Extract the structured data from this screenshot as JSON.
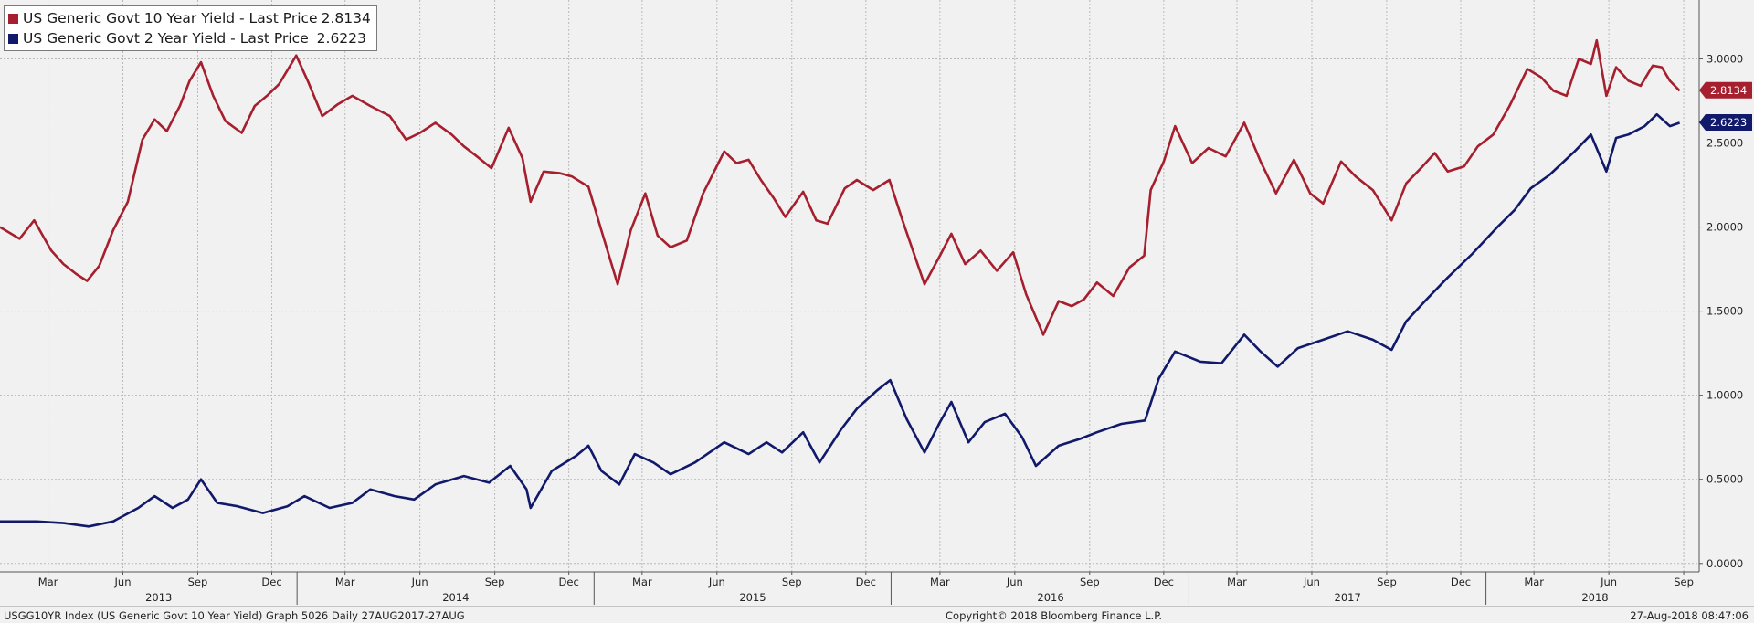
{
  "legend": {
    "items": [
      {
        "label": "US Generic Govt 10 Year Yield - Last Price",
        "value": "2.8134",
        "color": "#a51f2e"
      },
      {
        "label": "US Generic Govt 2 Year Yield - Last Price ",
        "value": "2.6223",
        "color": "#10196a"
      }
    ]
  },
  "footer": {
    "left": "USGG10YR Index (US Generic Govt 10 Year Yield) Graph 5026  Daily 27AUG2017-27AUG",
    "center": "Copyright© 2018 Bloomberg Finance L.P.",
    "right": "27-Aug-2018 08:47:06"
  },
  "chart_data": {
    "type": "line",
    "grid": true,
    "legend_position": "top-left",
    "ylim": [
      -0.05,
      3.35
    ],
    "yticks": [
      {
        "value": 0.0,
        "label": "0.0000"
      },
      {
        "value": 0.5,
        "label": "0.5000"
      },
      {
        "value": 1.0,
        "label": "1.0000"
      },
      {
        "value": 1.5,
        "label": "1.5000"
      },
      {
        "value": 2.0,
        "label": "2.0000"
      },
      {
        "value": 2.5,
        "label": "2.5000"
      },
      {
        "value": 3.0,
        "label": "3.0000"
      }
    ],
    "xlim": [
      "2013-01-01",
      "2018-09-20"
    ],
    "month_ticks": [
      {
        "date": "2013-03-01",
        "label": "Mar"
      },
      {
        "date": "2013-06-01",
        "label": "Jun"
      },
      {
        "date": "2013-09-01",
        "label": "Sep"
      },
      {
        "date": "2013-12-01",
        "label": "Dec"
      },
      {
        "date": "2014-03-01",
        "label": "Mar"
      },
      {
        "date": "2014-06-01",
        "label": "Jun"
      },
      {
        "date": "2014-09-01",
        "label": "Sep"
      },
      {
        "date": "2014-12-01",
        "label": "Dec"
      },
      {
        "date": "2015-03-01",
        "label": "Mar"
      },
      {
        "date": "2015-06-01",
        "label": "Jun"
      },
      {
        "date": "2015-09-01",
        "label": "Sep"
      },
      {
        "date": "2015-12-01",
        "label": "Dec"
      },
      {
        "date": "2016-03-01",
        "label": "Mar"
      },
      {
        "date": "2016-06-01",
        "label": "Jun"
      },
      {
        "date": "2016-09-01",
        "label": "Sep"
      },
      {
        "date": "2016-12-01",
        "label": "Dec"
      },
      {
        "date": "2017-03-01",
        "label": "Mar"
      },
      {
        "date": "2017-06-01",
        "label": "Jun"
      },
      {
        "date": "2017-09-01",
        "label": "Sep"
      },
      {
        "date": "2017-12-01",
        "label": "Dec"
      },
      {
        "date": "2018-03-01",
        "label": "Mar"
      },
      {
        "date": "2018-06-01",
        "label": "Jun"
      },
      {
        "date": "2018-09-01",
        "label": "Sep"
      }
    ],
    "year_labels": [
      {
        "date": "2013-07-15",
        "label": "2013"
      },
      {
        "date": "2014-07-15",
        "label": "2014"
      },
      {
        "date": "2015-07-15",
        "label": "2015"
      },
      {
        "date": "2016-07-15",
        "label": "2016"
      },
      {
        "date": "2017-07-15",
        "label": "2017"
      },
      {
        "date": "2018-05-15",
        "label": "2018"
      }
    ],
    "year_dividers": [
      "2014-01-01",
      "2015-01-01",
      "2016-01-01",
      "2017-01-01",
      "2018-01-01"
    ],
    "series": [
      {
        "name": "US Generic Govt 10 Year Yield - Last Price",
        "color": "#a51f2e",
        "last_value": 2.8134,
        "last_label": "2.8134",
        "points": [
          [
            "2013-01-01",
            2.0
          ],
          [
            "2013-01-25",
            1.93
          ],
          [
            "2013-02-12",
            2.04
          ],
          [
            "2013-03-05",
            1.86
          ],
          [
            "2013-03-20",
            1.78
          ],
          [
            "2013-04-05",
            1.72
          ],
          [
            "2013-04-18",
            1.68
          ],
          [
            "2013-05-03",
            1.77
          ],
          [
            "2013-05-20",
            1.98
          ],
          [
            "2013-06-07",
            2.15
          ],
          [
            "2013-06-25",
            2.52
          ],
          [
            "2013-07-10",
            2.64
          ],
          [
            "2013-07-25",
            2.57
          ],
          [
            "2013-08-10",
            2.72
          ],
          [
            "2013-08-22",
            2.87
          ],
          [
            "2013-09-05",
            2.98
          ],
          [
            "2013-09-20",
            2.78
          ],
          [
            "2013-10-05",
            2.63
          ],
          [
            "2013-10-25",
            2.56
          ],
          [
            "2013-11-10",
            2.72
          ],
          [
            "2013-11-25",
            2.78
          ],
          [
            "2013-12-10",
            2.85
          ],
          [
            "2013-12-31",
            3.02
          ],
          [
            "2014-01-15",
            2.86
          ],
          [
            "2014-02-01",
            2.66
          ],
          [
            "2014-02-20",
            2.73
          ],
          [
            "2014-03-10",
            2.78
          ],
          [
            "2014-04-01",
            2.72
          ],
          [
            "2014-04-25",
            2.66
          ],
          [
            "2014-05-15",
            2.52
          ],
          [
            "2014-06-01",
            2.56
          ],
          [
            "2014-06-20",
            2.62
          ],
          [
            "2014-07-10",
            2.55
          ],
          [
            "2014-07-25",
            2.48
          ],
          [
            "2014-08-10",
            2.42
          ],
          [
            "2014-08-28",
            2.35
          ],
          [
            "2014-09-18",
            2.59
          ],
          [
            "2014-10-05",
            2.41
          ],
          [
            "2014-10-15",
            2.15
          ],
          [
            "2014-10-31",
            2.33
          ],
          [
            "2014-11-20",
            2.32
          ],
          [
            "2014-12-05",
            2.3
          ],
          [
            "2014-12-25",
            2.24
          ],
          [
            "2015-01-10",
            1.98
          ],
          [
            "2015-01-30",
            1.66
          ],
          [
            "2015-02-15",
            1.98
          ],
          [
            "2015-03-05",
            2.2
          ],
          [
            "2015-03-20",
            1.95
          ],
          [
            "2015-04-05",
            1.88
          ],
          [
            "2015-04-25",
            1.92
          ],
          [
            "2015-05-15",
            2.2
          ],
          [
            "2015-06-10",
            2.45
          ],
          [
            "2015-06-25",
            2.38
          ],
          [
            "2015-07-10",
            2.4
          ],
          [
            "2015-07-25",
            2.28
          ],
          [
            "2015-08-10",
            2.17
          ],
          [
            "2015-08-24",
            2.06
          ],
          [
            "2015-09-15",
            2.21
          ],
          [
            "2015-10-01",
            2.04
          ],
          [
            "2015-10-15",
            2.02
          ],
          [
            "2015-11-05",
            2.23
          ],
          [
            "2015-11-20",
            2.28
          ],
          [
            "2015-12-10",
            2.22
          ],
          [
            "2015-12-30",
            2.28
          ],
          [
            "2016-01-15",
            2.04
          ],
          [
            "2016-02-11",
            1.66
          ],
          [
            "2016-03-01",
            1.83
          ],
          [
            "2016-03-15",
            1.96
          ],
          [
            "2016-04-01",
            1.78
          ],
          [
            "2016-04-20",
            1.86
          ],
          [
            "2016-05-10",
            1.74
          ],
          [
            "2016-05-30",
            1.85
          ],
          [
            "2016-06-15",
            1.6
          ],
          [
            "2016-07-06",
            1.36
          ],
          [
            "2016-07-25",
            1.56
          ],
          [
            "2016-08-10",
            1.53
          ],
          [
            "2016-08-25",
            1.57
          ],
          [
            "2016-09-10",
            1.67
          ],
          [
            "2016-09-30",
            1.59
          ],
          [
            "2016-10-20",
            1.76
          ],
          [
            "2016-11-07",
            1.83
          ],
          [
            "2016-11-15",
            2.22
          ],
          [
            "2016-12-01",
            2.39
          ],
          [
            "2016-12-15",
            2.6
          ],
          [
            "2017-01-05",
            2.38
          ],
          [
            "2017-01-25",
            2.47
          ],
          [
            "2017-02-15",
            2.42
          ],
          [
            "2017-03-10",
            2.62
          ],
          [
            "2017-03-30",
            2.39
          ],
          [
            "2017-04-18",
            2.2
          ],
          [
            "2017-05-10",
            2.4
          ],
          [
            "2017-05-30",
            2.2
          ],
          [
            "2017-06-15",
            2.14
          ],
          [
            "2017-07-07",
            2.39
          ],
          [
            "2017-07-25",
            2.3
          ],
          [
            "2017-08-15",
            2.22
          ],
          [
            "2017-09-07",
            2.04
          ],
          [
            "2017-09-25",
            2.26
          ],
          [
            "2017-10-15",
            2.36
          ],
          [
            "2017-10-30",
            2.44
          ],
          [
            "2017-11-15",
            2.33
          ],
          [
            "2017-12-05",
            2.36
          ],
          [
            "2017-12-22",
            2.48
          ],
          [
            "2018-01-10",
            2.55
          ],
          [
            "2018-01-30",
            2.72
          ],
          [
            "2018-02-21",
            2.94
          ],
          [
            "2018-03-10",
            2.89
          ],
          [
            "2018-03-25",
            2.81
          ],
          [
            "2018-04-10",
            2.78
          ],
          [
            "2018-04-25",
            3.0
          ],
          [
            "2018-05-10",
            2.97
          ],
          [
            "2018-05-17",
            3.11
          ],
          [
            "2018-05-29",
            2.78
          ],
          [
            "2018-06-10",
            2.95
          ],
          [
            "2018-06-25",
            2.87
          ],
          [
            "2018-07-10",
            2.84
          ],
          [
            "2018-07-25",
            2.96
          ],
          [
            "2018-08-05",
            2.95
          ],
          [
            "2018-08-15",
            2.87
          ],
          [
            "2018-08-27",
            2.81
          ]
        ]
      },
      {
        "name": "US Generic Govt 2 Year Yield - Last Price",
        "color": "#10196a",
        "last_value": 2.6223,
        "last_label": "2.6223",
        "points": [
          [
            "2013-01-01",
            0.25
          ],
          [
            "2013-02-15",
            0.25
          ],
          [
            "2013-03-20",
            0.24
          ],
          [
            "2013-04-20",
            0.22
          ],
          [
            "2013-05-20",
            0.25
          ],
          [
            "2013-06-20",
            0.33
          ],
          [
            "2013-07-10",
            0.4
          ],
          [
            "2013-08-01",
            0.33
          ],
          [
            "2013-08-20",
            0.38
          ],
          [
            "2013-09-05",
            0.5
          ],
          [
            "2013-09-25",
            0.36
          ],
          [
            "2013-10-20",
            0.34
          ],
          [
            "2013-11-20",
            0.3
          ],
          [
            "2013-12-20",
            0.34
          ],
          [
            "2014-01-10",
            0.4
          ],
          [
            "2014-02-10",
            0.33
          ],
          [
            "2014-03-10",
            0.36
          ],
          [
            "2014-04-01",
            0.44
          ],
          [
            "2014-05-01",
            0.4
          ],
          [
            "2014-05-25",
            0.38
          ],
          [
            "2014-06-20",
            0.47
          ],
          [
            "2014-07-25",
            0.52
          ],
          [
            "2014-08-25",
            0.48
          ],
          [
            "2014-09-20",
            0.58
          ],
          [
            "2014-10-10",
            0.44
          ],
          [
            "2014-10-15",
            0.33
          ],
          [
            "2014-11-10",
            0.55
          ],
          [
            "2014-12-10",
            0.64
          ],
          [
            "2014-12-25",
            0.7
          ],
          [
            "2015-01-10",
            0.55
          ],
          [
            "2015-02-01",
            0.47
          ],
          [
            "2015-02-20",
            0.65
          ],
          [
            "2015-03-15",
            0.6
          ],
          [
            "2015-04-05",
            0.53
          ],
          [
            "2015-05-05",
            0.6
          ],
          [
            "2015-06-10",
            0.72
          ],
          [
            "2015-07-10",
            0.65
          ],
          [
            "2015-08-01",
            0.72
          ],
          [
            "2015-08-20",
            0.66
          ],
          [
            "2015-09-15",
            0.78
          ],
          [
            "2015-10-05",
            0.6
          ],
          [
            "2015-11-01",
            0.8
          ],
          [
            "2015-11-20",
            0.92
          ],
          [
            "2015-12-15",
            1.03
          ],
          [
            "2015-12-31",
            1.09
          ],
          [
            "2016-01-20",
            0.86
          ],
          [
            "2016-02-11",
            0.66
          ],
          [
            "2016-03-01",
            0.84
          ],
          [
            "2016-03-15",
            0.96
          ],
          [
            "2016-04-05",
            0.72
          ],
          [
            "2016-04-25",
            0.84
          ],
          [
            "2016-05-20",
            0.89
          ],
          [
            "2016-06-10",
            0.75
          ],
          [
            "2016-06-27",
            0.58
          ],
          [
            "2016-07-25",
            0.7
          ],
          [
            "2016-08-20",
            0.74
          ],
          [
            "2016-09-10",
            0.78
          ],
          [
            "2016-10-10",
            0.83
          ],
          [
            "2016-11-08",
            0.85
          ],
          [
            "2016-11-25",
            1.1
          ],
          [
            "2016-12-15",
            1.26
          ],
          [
            "2017-01-15",
            1.2
          ],
          [
            "2017-02-10",
            1.19
          ],
          [
            "2017-03-10",
            1.36
          ],
          [
            "2017-03-30",
            1.26
          ],
          [
            "2017-04-20",
            1.17
          ],
          [
            "2017-05-15",
            1.28
          ],
          [
            "2017-06-15",
            1.33
          ],
          [
            "2017-07-15",
            1.38
          ],
          [
            "2017-08-15",
            1.33
          ],
          [
            "2017-09-07",
            1.27
          ],
          [
            "2017-09-25",
            1.44
          ],
          [
            "2017-10-20",
            1.57
          ],
          [
            "2017-11-15",
            1.7
          ],
          [
            "2017-12-15",
            1.84
          ],
          [
            "2018-01-15",
            2.0
          ],
          [
            "2018-02-05",
            2.1
          ],
          [
            "2018-02-25",
            2.23
          ],
          [
            "2018-03-20",
            2.31
          ],
          [
            "2018-04-20",
            2.45
          ],
          [
            "2018-05-10",
            2.55
          ],
          [
            "2018-05-29",
            2.33
          ],
          [
            "2018-06-10",
            2.53
          ],
          [
            "2018-06-25",
            2.55
          ],
          [
            "2018-07-15",
            2.6
          ],
          [
            "2018-07-30",
            2.67
          ],
          [
            "2018-08-15",
            2.6
          ],
          [
            "2018-08-27",
            2.62
          ]
        ]
      }
    ]
  }
}
